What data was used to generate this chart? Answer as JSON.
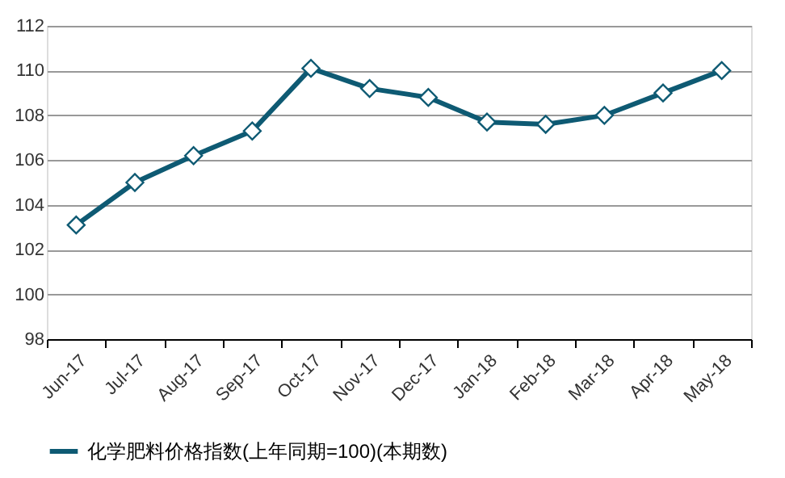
{
  "chart_data": {
    "type": "line",
    "categories": [
      "Jun-17",
      "Jul-17",
      "Aug-17",
      "Sep-17",
      "Oct-17",
      "Nov-17",
      "Dec-17",
      "Jan-18",
      "Feb-18",
      "Mar-18",
      "Apr-18",
      "May-18"
    ],
    "series": [
      {
        "name": "化学肥料价格指数(上年同期=100)(本期数)",
        "color": "#0e5a73",
        "values": [
          103.1,
          105.0,
          106.2,
          107.3,
          110.1,
          109.2,
          108.8,
          107.7,
          107.6,
          108.0,
          109.0,
          110.0
        ]
      }
    ],
    "ylim": [
      98,
      112
    ],
    "yticks": [
      98,
      100,
      102,
      104,
      106,
      108,
      110,
      112
    ],
    "grid": "y",
    "legend": "bottom",
    "marker": "diamond",
    "line_style": "solid"
  }
}
